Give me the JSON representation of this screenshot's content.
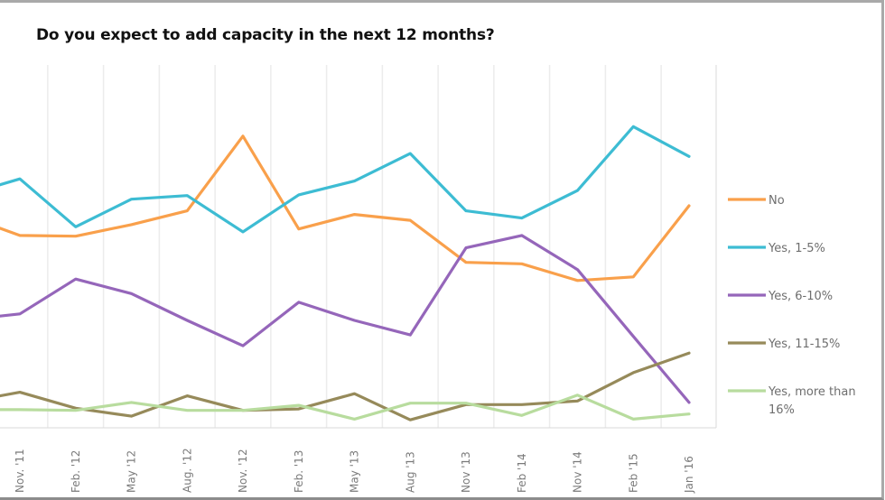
{
  "chart_data": {
    "type": "line",
    "title": "Do you expect to add capacity in the next 12 months?",
    "xlabel": "",
    "ylabel": "",
    "y_axis_visible": false,
    "y_units": "estimated % of respondents (no y-axis shown)",
    "ylim": [
      0,
      50
    ],
    "grid": "vertical",
    "legend_position": "right",
    "leading_partial_point": true,
    "categories": [
      "Nov. '11",
      "Feb. '12",
      "May '12",
      "Aug. '12",
      "Nov. '12",
      "Feb. '13",
      "May '13",
      "Aug '13",
      "Nov '13",
      "Feb '14",
      "Nov '14",
      "Feb '15",
      "Jan '16"
    ],
    "series": [
      {
        "name": "No",
        "color": "#F9A04B",
        "leading_value": 27.5,
        "values": [
          26.5,
          26.4,
          28.0,
          29.9,
          40.2,
          27.4,
          29.4,
          28.6,
          22.8,
          22.6,
          20.3,
          20.8,
          30.6
        ]
      },
      {
        "name": "Yes, 1-5%",
        "color": "#3DBCD3",
        "leading_value": 33.5,
        "values": [
          34.3,
          27.7,
          31.5,
          32.0,
          27.0,
          32.1,
          34.0,
          37.8,
          29.9,
          28.9,
          32.7,
          41.5,
          37.4
        ]
      },
      {
        "name": "Yes, 6-10%",
        "color": "#9566BA",
        "leading_value": 15.4,
        "values": [
          15.7,
          20.5,
          18.5,
          14.8,
          11.3,
          17.3,
          14.8,
          12.8,
          24.8,
          26.5,
          21.8,
          12.6,
          3.5
        ]
      },
      {
        "name": "Yes, 11-15%",
        "color": "#968A5A",
        "leading_value": 4.4,
        "values": [
          4.9,
          2.7,
          1.6,
          4.4,
          2.4,
          2.6,
          4.7,
          1.1,
          3.2,
          3.2,
          3.7,
          7.6,
          10.3
        ]
      },
      {
        "name": "Yes, more than 16%",
        "legend_lines": [
          "Yes, more than",
          "16%"
        ],
        "color": "#B8DC9E",
        "leading_value": 2.5,
        "values": [
          2.5,
          2.4,
          3.5,
          2.4,
          2.4,
          3.1,
          1.2,
          3.4,
          3.4,
          1.7,
          4.5,
          1.2,
          1.9
        ]
      }
    ]
  }
}
